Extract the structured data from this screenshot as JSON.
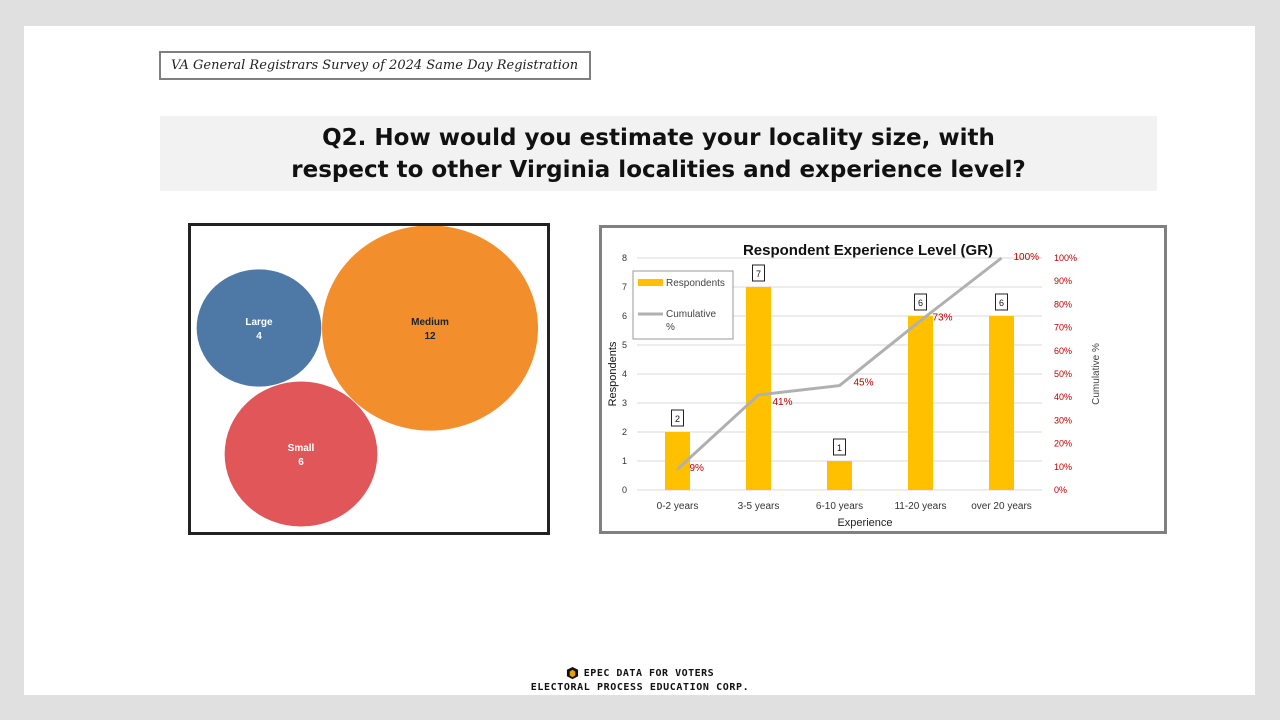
{
  "slide": {
    "survey_label": "VA General Registrars Survey of 2024 Same Day Registration",
    "question": "Q2. How would you estimate your locality size, with respect to other Virginia localities and experience level?"
  },
  "footer": {
    "brand": "EPEC DATA FOR VOTERS",
    "corp": "ELECTORAL PROCESS EDUCATION CORP."
  },
  "colors": {
    "large": "#4e79a7",
    "medium": "#f28e2b",
    "small": "#e15759",
    "bar": "#ffc000",
    "line": "#b0b0b0",
    "pct_text": "#c00000"
  },
  "chart_data": [
    {
      "type": "bubble",
      "title": "",
      "items": [
        {
          "name": "Large",
          "value": 4
        },
        {
          "name": "Medium",
          "value": 12
        },
        {
          "name": "Small",
          "value": 6
        }
      ]
    },
    {
      "type": "bar",
      "title": "Respondent Experience Level (GR)",
      "xlabel": "Experience",
      "ylabel": "Respondents",
      "y2label": "Cumulative %",
      "categories": [
        "0-2 years",
        "3-5 years",
        "6-10 years",
        "11-20 years",
        "over 20 years"
      ],
      "series": [
        {
          "name": "Respondents",
          "values": [
            2,
            7,
            1,
            6,
            6
          ],
          "axis": "left"
        },
        {
          "name": "Cumulative %",
          "values": [
            9,
            41,
            45,
            73,
            100
          ],
          "axis": "right",
          "kind": "line"
        }
      ],
      "ylim": [
        0,
        8
      ],
      "yticks": [
        "0",
        "1",
        "2",
        "3",
        "4",
        "5",
        "6",
        "7",
        "8"
      ],
      "y2lim": [
        0,
        100
      ],
      "y2ticks": [
        "0%",
        "10%",
        "20%",
        "30%",
        "40%",
        "50%",
        "60%",
        "70%",
        "80%",
        "90%",
        "100%"
      ],
      "bar_labels": [
        "2",
        "7",
        "1",
        "6",
        "6"
      ],
      "line_labels": [
        "9%",
        "41%",
        "45%",
        "73%",
        "100%"
      ],
      "legend": {
        "position": "top-left",
        "entries": [
          "Respondents",
          "Cumulative %"
        ]
      }
    }
  ]
}
